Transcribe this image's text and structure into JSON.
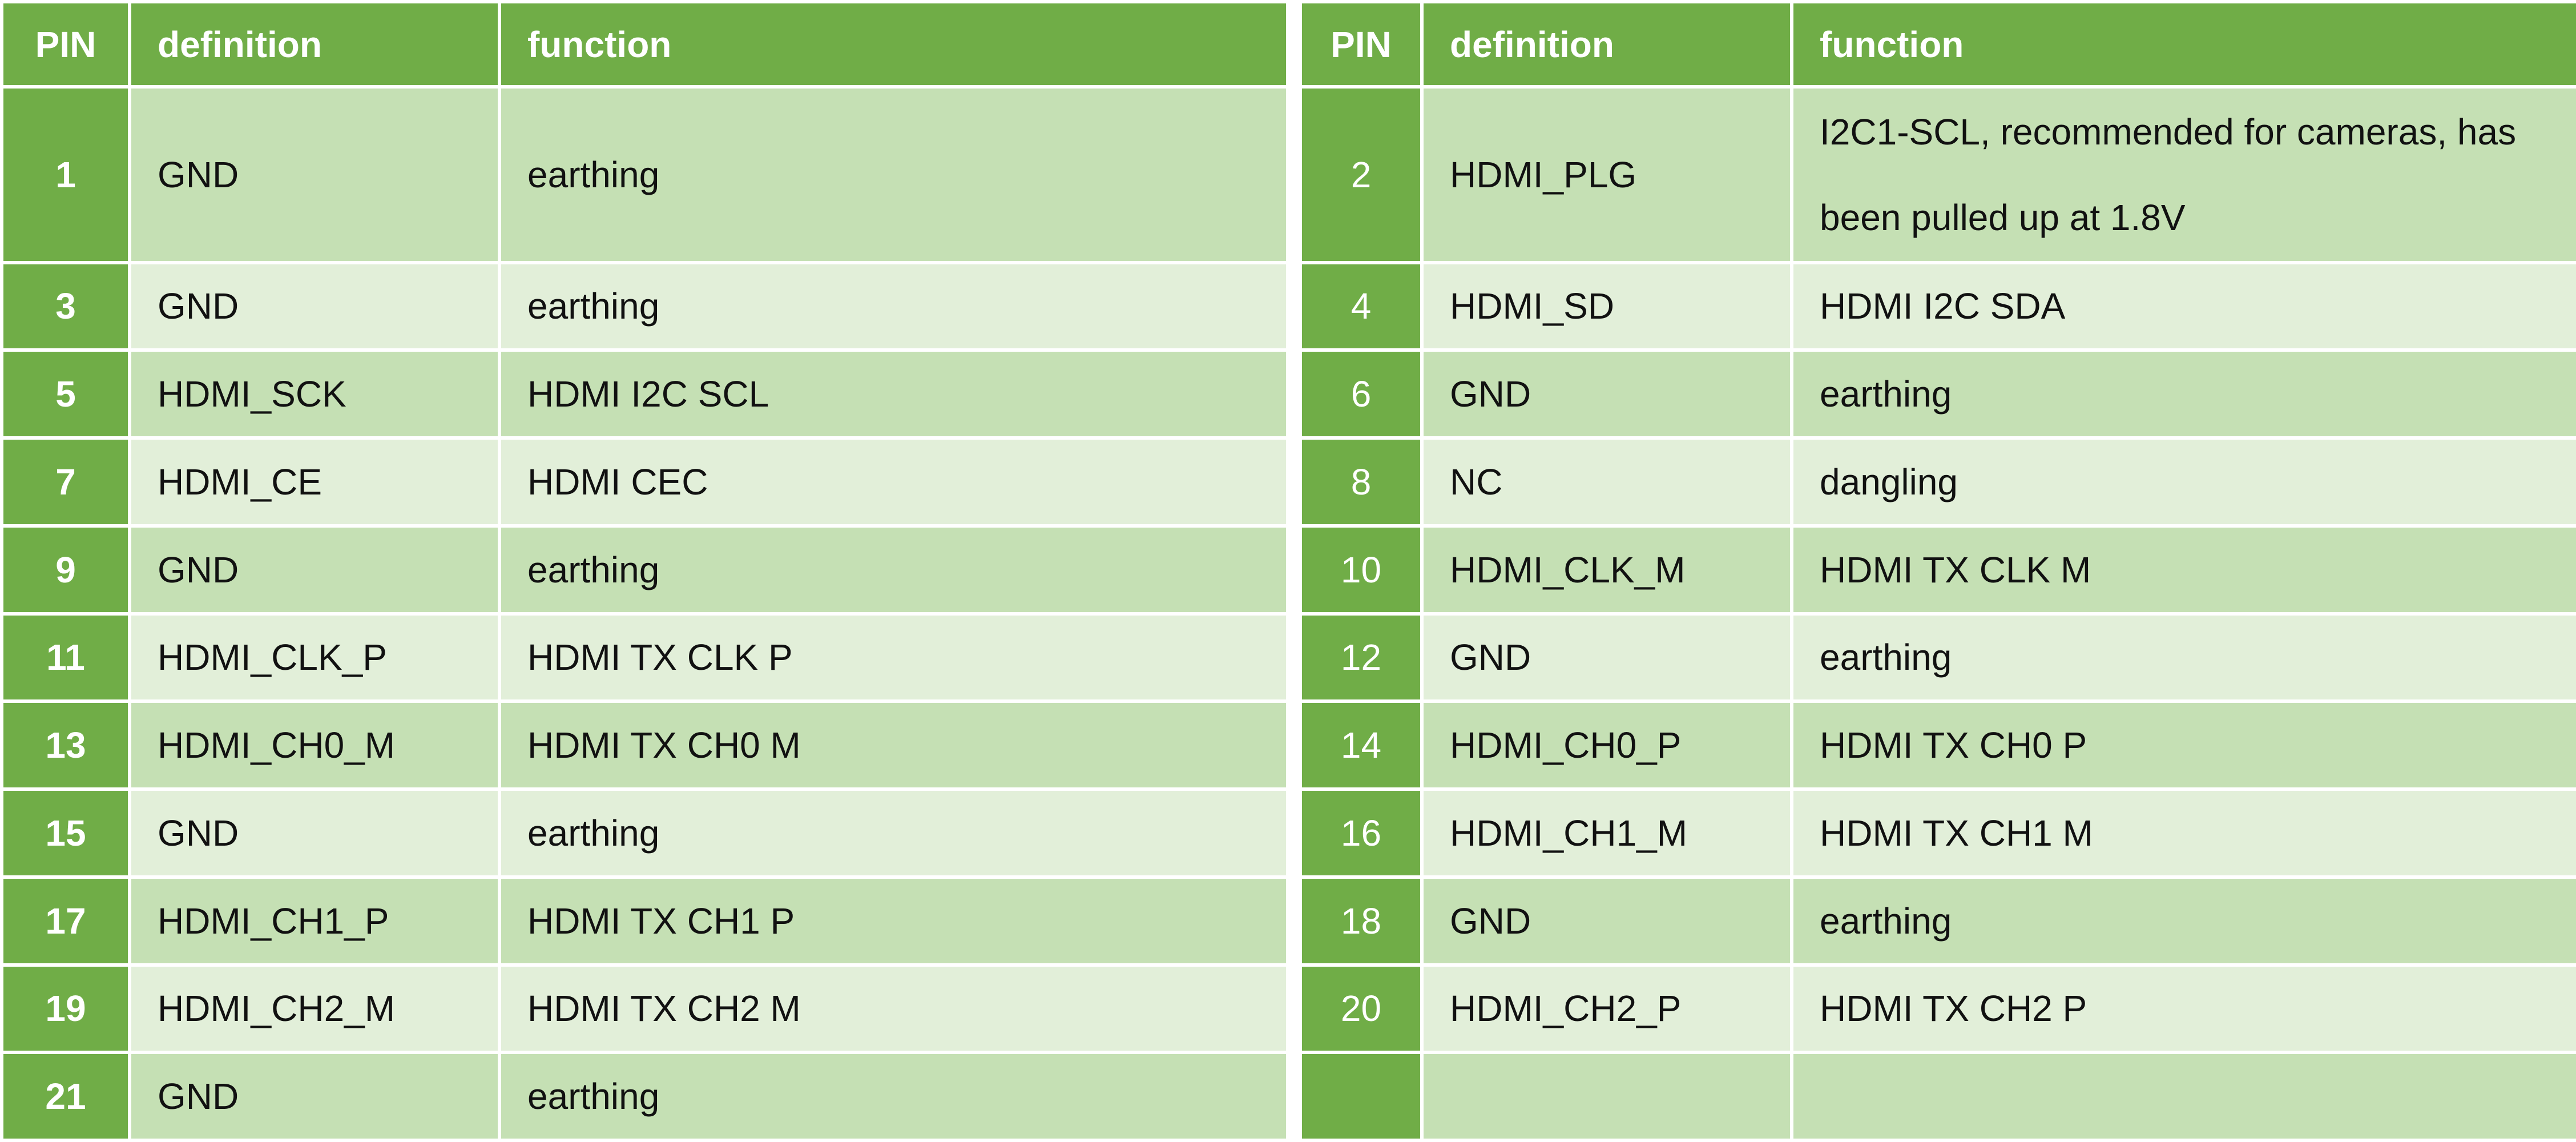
{
  "headers": {
    "pin": "PIN",
    "definition": "definition",
    "function": "function",
    "pin2": "PIN",
    "definition2": "definition",
    "function2": "function"
  },
  "rows": [
    {
      "left": {
        "pin": "1",
        "definition": "GND",
        "function": "earthing"
      },
      "right": {
        "pin": "2",
        "definition": "HDMI_PLG",
        "function": "I2C1-SCL, recommended for cameras, has been pulled up at 1.8V"
      }
    },
    {
      "left": {
        "pin": "3",
        "definition": "GND",
        "function": "earthing"
      },
      "right": {
        "pin": "4",
        "definition": "HDMI_SD",
        "function": "HDMI I2C SDA"
      }
    },
    {
      "left": {
        "pin": "5",
        "definition": "HDMI_SCK",
        "function": "HDMI I2C SCL"
      },
      "right": {
        "pin": "6",
        "definition": "GND",
        "function": "earthing"
      }
    },
    {
      "left": {
        "pin": "7",
        "definition": "HDMI_CE",
        "function": "HDMI CEC"
      },
      "right": {
        "pin": "8",
        "definition": "NC",
        "function": "dangling"
      }
    },
    {
      "left": {
        "pin": "9",
        "definition": "GND",
        "function": "earthing"
      },
      "right": {
        "pin": "10",
        "definition": "HDMI_CLK_M",
        "function": "HDMI TX CLK M"
      }
    },
    {
      "left": {
        "pin": "11",
        "definition": "HDMI_CLK_P",
        "function": "HDMI TX CLK P"
      },
      "right": {
        "pin": "12",
        "definition": "GND",
        "function": "earthing"
      }
    },
    {
      "left": {
        "pin": "13",
        "definition": "HDMI_CH0_M",
        "function": "HDMI TX CH0 M"
      },
      "right": {
        "pin": "14",
        "definition": "HDMI_CH0_P",
        "function": "HDMI TX CH0 P"
      }
    },
    {
      "left": {
        "pin": "15",
        "definition": "GND",
        "function": "earthing"
      },
      "right": {
        "pin": "16",
        "definition": "HDMI_CH1_M",
        "function": "HDMI TX CH1 M"
      }
    },
    {
      "left": {
        "pin": "17",
        "definition": "HDMI_CH1_P",
        "function": "HDMI TX CH1 P"
      },
      "right": {
        "pin": "18",
        "definition": "GND",
        "function": "earthing"
      }
    },
    {
      "left": {
        "pin": "19",
        "definition": "HDMI_CH2_M",
        "function": "HDMI TX CH2 M"
      },
      "right": {
        "pin": "20",
        "definition": "HDMI_CH2_P",
        "function": "HDMI TX CH2 P"
      }
    },
    {
      "left": {
        "pin": "21",
        "definition": "GND",
        "function": "earthing"
      },
      "right": {
        "pin": "",
        "definition": "",
        "function": ""
      }
    }
  ],
  "colors": {
    "header_green": "#70ad47",
    "row_dark": "#c5e0b4",
    "row_light": "#e2efd9",
    "border": "#ffffff"
  }
}
